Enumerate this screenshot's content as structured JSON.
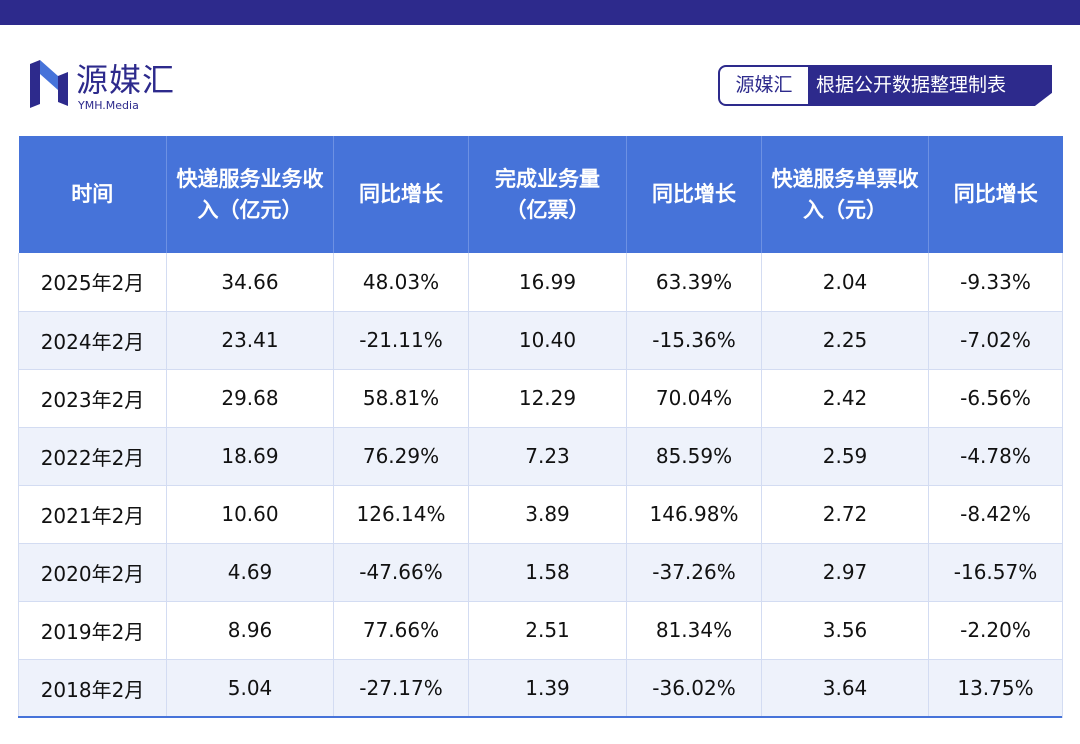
{
  "logo": {
    "name_cn": "源媒汇",
    "name_en": "YMH.Media"
  },
  "source": {
    "brand": "源媒汇",
    "text": "根据公开数据整理制表"
  },
  "colors": {
    "primary": "#2d2a8c",
    "header": "#4673d9",
    "row_alt": "#eef2fb"
  },
  "table": {
    "headers": [
      "时间",
      "快递服务业务收入（亿元）",
      "同比增长",
      "完成业务量（亿票）",
      "同比增长",
      "快递服务单票收入（元）",
      "同比增长"
    ],
    "rows": [
      [
        "2025年2月",
        "34.66",
        "48.03%",
        "16.99",
        "63.39%",
        "2.04",
        "-9.33%"
      ],
      [
        "2024年2月",
        "23.41",
        "-21.11%",
        "10.40",
        "-15.36%",
        "2.25",
        "-7.02%"
      ],
      [
        "2023年2月",
        "29.68",
        "58.81%",
        "12.29",
        "70.04%",
        "2.42",
        "-6.56%"
      ],
      [
        "2022年2月",
        "18.69",
        "76.29%",
        "7.23",
        "85.59%",
        "2.59",
        "-4.78%"
      ],
      [
        "2021年2月",
        "10.60",
        "126.14%",
        "3.89",
        "146.98%",
        "2.72",
        "-8.42%"
      ],
      [
        "2020年2月",
        "4.69",
        "-47.66%",
        "1.58",
        "-37.26%",
        "2.97",
        "-16.57%"
      ],
      [
        "2019年2月",
        "8.96",
        "77.66%",
        "2.51",
        "81.34%",
        "3.56",
        "-2.20%"
      ],
      [
        "2018年2月",
        "5.04",
        "-27.17%",
        "1.39",
        "-36.02%",
        "3.64",
        "13.75%"
      ]
    ]
  }
}
